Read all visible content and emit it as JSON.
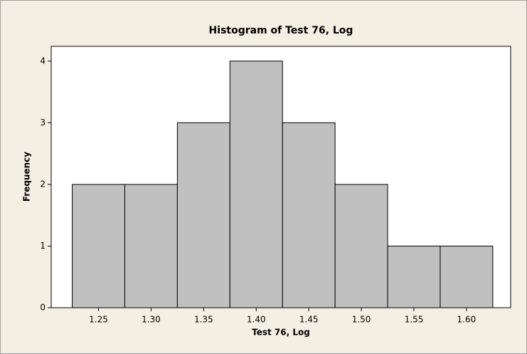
{
  "chart_data": {
    "type": "histogram",
    "title": "Histogram of Test 76, Log",
    "x_label": "Test 76, Log",
    "y_label": "Frequency",
    "bins": [
      1.225,
      1.275,
      1.325,
      1.375,
      1.425,
      1.475,
      1.525,
      1.575,
      1.625
    ],
    "values": [
      2,
      2,
      3,
      4,
      3,
      2,
      1,
      1
    ],
    "color": "#c0c0c0",
    "xlim": [
      1.205,
      1.642
    ],
    "xticks": [
      1.25,
      {
        "value": 1.3,
        "label": "1.30"
      },
      1.35,
      {
        "value": 1.4,
        "label": "1.40"
      },
      1.45,
      {
        "value": 1.5,
        "label": "1.50"
      },
      1.55,
      {
        "value": 1.6,
        "label": "1.60"
      }
    ],
    "ylim": [
      0,
      4.24
    ],
    "yticks": [
      0,
      1,
      2,
      3,
      4
    ]
  }
}
